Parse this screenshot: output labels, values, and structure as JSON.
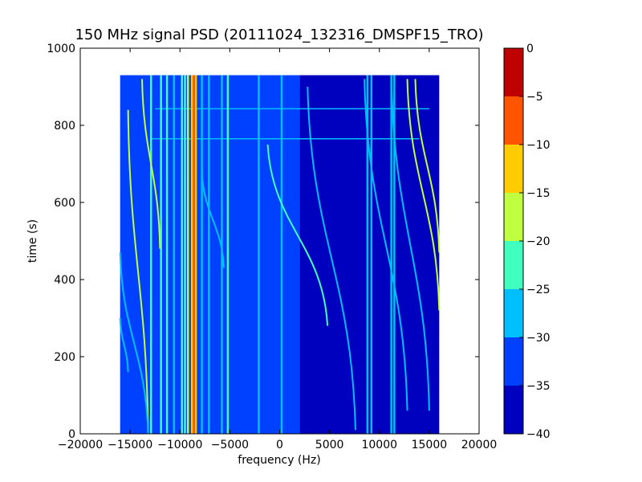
{
  "chart_data": {
    "type": "heatmap",
    "title": "150 MHz signal PSD (20111024_132316_DMSPF15_TRO)",
    "xlabel": "frequency (Hz)",
    "ylabel": "time (s)",
    "xlim": [
      -20000,
      20000
    ],
    "ylim": [
      0,
      1000
    ],
    "x_ticks": [
      -20000,
      -15000,
      -10000,
      -5000,
      0,
      5000,
      10000,
      15000,
      20000
    ],
    "y_ticks": [
      0,
      200,
      400,
      600,
      800,
      1000
    ],
    "data_extent": {
      "x": [
        -16000,
        16000
      ],
      "y": [
        0,
        930
      ]
    },
    "colormap": "jet",
    "colorbar": {
      "levels": [
        -40,
        -35,
        -30,
        -25,
        -20,
        -15,
        -10,
        -5,
        0
      ],
      "tick_labels": [
        "−40",
        "−35",
        "−30",
        "−25",
        "−20",
        "−15",
        "−10",
        "−5",
        "0"
      ],
      "colors": [
        "#0000bf",
        "#0040ff",
        "#00bfff",
        "#40ffbf",
        "#bfff40",
        "#ffcc00",
        "#ff5500",
        "#bf0000"
      ]
    },
    "background_level_dB": {
      "x_below_2000": -30,
      "x_above_2000": -35
    },
    "vertical_lines": [
      {
        "x": -12900,
        "dB": -20
      },
      {
        "x": -11900,
        "dB": -22
      },
      {
        "x": -11300,
        "dB": -20
      },
      {
        "x": -10600,
        "dB": -25
      },
      {
        "x": -9800,
        "dB": -22
      },
      {
        "x": -9500,
        "dB": -20
      },
      {
        "x": -9200,
        "dB": -15
      },
      {
        "x": -8800,
        "dB": -12
      },
      {
        "x": -8600,
        "dB": -5
      },
      {
        "x": -8400,
        "dB": -12
      },
      {
        "x": -7800,
        "dB": -28
      },
      {
        "x": -7100,
        "dB": -28
      },
      {
        "x": -5800,
        "dB": -28
      },
      {
        "x": -5200,
        "dB": -22
      },
      {
        "x": -2100,
        "dB": -28
      },
      {
        "x": 200,
        "dB": -28
      },
      {
        "x": 8800,
        "dB": -28
      },
      {
        "x": 9200,
        "dB": -28
      },
      {
        "x": 11200,
        "dB": -28
      },
      {
        "x": 11500,
        "dB": -28
      }
    ],
    "doppler_tracks": [
      {
        "start": [
          -15200,
          840
        ],
        "end": [
          -13200,
          0
        ],
        "dB": -15
      },
      {
        "start": [
          -16000,
          470
        ],
        "end": [
          -13200,
          0
        ],
        "dB": -25
      },
      {
        "start": [
          -16000,
          300
        ],
        "end": [
          -15200,
          160
        ],
        "dB": -25
      },
      {
        "start": [
          -13800,
          920
        ],
        "end": [
          -12000,
          480
        ],
        "dB": -15
      },
      {
        "start": [
          -7800,
          680
        ],
        "end": [
          -5600,
          430
        ],
        "dB": -25
      },
      {
        "start": [
          -1200,
          750
        ],
        "end": [
          4800,
          280
        ],
        "dB": -20
      },
      {
        "start": [
          2800,
          900
        ],
        "end": [
          7600,
          10
        ],
        "dB": -25
      },
      {
        "start": [
          8500,
          920
        ],
        "end": [
          12800,
          60
        ],
        "dB": -25
      },
      {
        "start": [
          11200,
          920
        ],
        "end": [
          15000,
          60
        ],
        "dB": -25
      },
      {
        "start": [
          12800,
          920
        ],
        "end": [
          16000,
          320
        ],
        "dB": -15
      },
      {
        "start": [
          13600,
          920
        ],
        "end": [
          16000,
          470
        ],
        "dB": -15
      }
    ],
    "horizontal_lines": [
      {
        "y": 843,
        "x_range": [
          -12500,
          15000
        ],
        "dB": -25
      },
      {
        "y": 765,
        "x_range": [
          -13000,
          14000
        ],
        "dB": -25
      }
    ]
  }
}
